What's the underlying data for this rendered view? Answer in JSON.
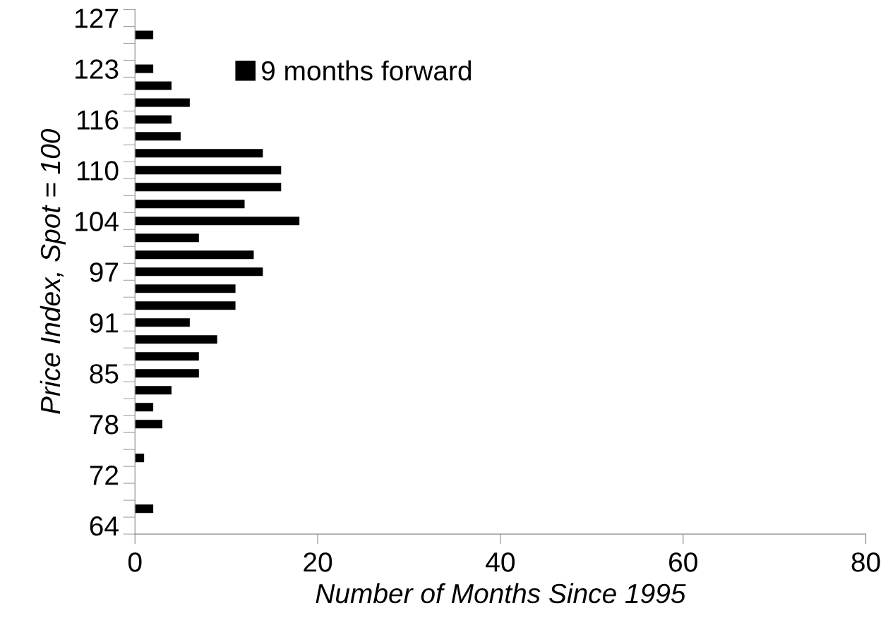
{
  "chart_data": {
    "type": "bar",
    "orientation": "horizontal",
    "xlabel": "Number of Months Since 1995",
    "ylabel": "Price Index, Spot = 100",
    "categories": [
      "127",
      null,
      null,
      "123",
      null,
      null,
      "116",
      null,
      null,
      "110",
      null,
      null,
      "104",
      null,
      null,
      "97",
      null,
      null,
      "91",
      null,
      null,
      "85",
      null,
      null,
      "78",
      null,
      null,
      "72",
      null,
      null,
      "64"
    ],
    "series": [
      {
        "name": "9 months forward",
        "color": "#000000",
        "values": [
          0,
          2,
          0,
          2,
          4,
          6,
          4,
          5,
          14,
          16,
          16,
          12,
          18,
          7,
          13,
          14,
          11,
          11,
          6,
          9,
          7,
          7,
          4,
          2,
          3,
          0,
          1,
          0,
          0,
          2,
          0
        ]
      }
    ],
    "xlim": [
      0,
      80
    ],
    "xticks": [
      0,
      20,
      40,
      60,
      80
    ],
    "grid": false,
    "legend": "top"
  }
}
